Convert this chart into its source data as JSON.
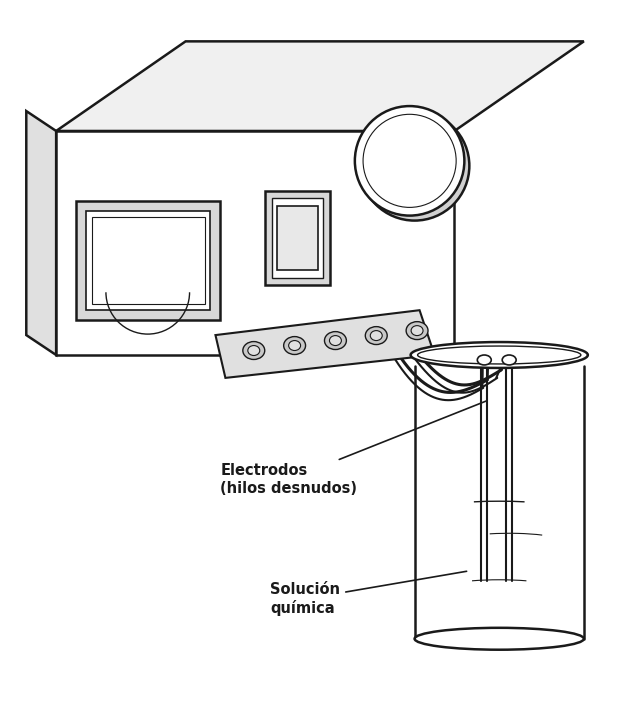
{
  "background_color": "#ffffff",
  "line_color": "#1a1a1a",
  "label_electrodos": "Electrodos\n(hilos desnudos)",
  "label_solucion": "Solución\nquímica",
  "label_fontsize": 10.5,
  "label_fontweight": "bold",
  "figsize": [
    6.4,
    7.09
  ],
  "dpi": 100
}
